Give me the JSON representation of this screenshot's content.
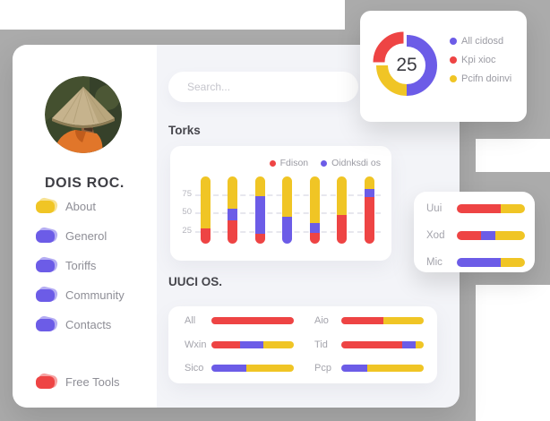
{
  "colors": {
    "red": "#ee4444",
    "purple": "#6c5ce7",
    "yellow": "#f0c525",
    "backdrop_gray": "#ababab"
  },
  "sidebar": {
    "name": "DOIS ROC.",
    "items": [
      {
        "label": "About",
        "color": "yellow"
      },
      {
        "label": "Generol",
        "color": "purple"
      },
      {
        "label": "Toriffs",
        "color": "purple"
      },
      {
        "label": "Community",
        "color": "purple"
      },
      {
        "label": "Contacts",
        "color": "purple"
      }
    ],
    "footer_item": {
      "label": "Free Tools",
      "color": "red"
    }
  },
  "search": {
    "placeholder": "Search..."
  },
  "donut_card": {
    "value": "25",
    "segments": [
      {
        "color": "purple",
        "fraction": 0.5
      },
      {
        "color": "red",
        "fraction": 0.25,
        "exploded": true
      },
      {
        "color": "yellow",
        "fraction": 0.25
      }
    ],
    "legend": [
      {
        "label": "All cidosd",
        "color": "purple"
      },
      {
        "label": "Kpi xioc",
        "color": "red"
      },
      {
        "label": "Pcifn doinvi",
        "color": "yellow"
      }
    ]
  },
  "torks_chart": {
    "title": "Torks",
    "type": "stacked-bar",
    "legend": [
      {
        "label": "Fdison",
        "color": "red"
      },
      {
        "label": "Oidnksdi os",
        "color": "purple"
      }
    ],
    "y_ticks": [
      {
        "label": "75",
        "pos": 0.267
      },
      {
        "label": "50",
        "pos": 0.533
      },
      {
        "label": "25",
        "pos": 0.813
      }
    ],
    "bars": [
      {
        "segments": [
          {
            "color": "red",
            "frac": 0.23
          },
          {
            "color": "yellow",
            "frac": 0.77
          }
        ]
      },
      {
        "segments": [
          {
            "color": "red",
            "frac": 0.35
          },
          {
            "color": "purple",
            "frac": 0.17
          },
          {
            "color": "yellow",
            "frac": 0.48
          }
        ]
      },
      {
        "segments": [
          {
            "color": "red",
            "frac": 0.15
          },
          {
            "color": "purple",
            "frac": 0.56
          },
          {
            "color": "yellow",
            "frac": 0.29
          }
        ]
      },
      {
        "segments": [
          {
            "color": "purple",
            "frac": 0.4
          },
          {
            "color": "yellow",
            "frac": 0.6
          }
        ]
      },
      {
        "segments": [
          {
            "color": "red",
            "frac": 0.16
          },
          {
            "color": "purple",
            "frac": 0.15
          },
          {
            "color": "yellow",
            "frac": 0.69
          }
        ]
      },
      {
        "segments": [
          {
            "color": "red",
            "frac": 0.43
          },
          {
            "color": "yellow",
            "frac": 0.57
          }
        ]
      },
      {
        "segments": [
          {
            "color": "red",
            "frac": 0.69
          },
          {
            "color": "purple",
            "frac": 0.13
          },
          {
            "color": "yellow",
            "frac": 0.18
          }
        ]
      }
    ]
  },
  "uuci_chart": {
    "title": "UUCI OS.",
    "type": "horizontal-stacked-bar",
    "columns": [
      {
        "rows": [
          {
            "label": "All",
            "segments": [
              {
                "color": "red",
                "frac": 1.0
              }
            ]
          },
          {
            "label": "Wxin",
            "segments": [
              {
                "color": "red",
                "frac": 0.35
              },
              {
                "color": "purple",
                "frac": 0.28
              },
              {
                "color": "yellow",
                "frac": 0.37
              }
            ]
          },
          {
            "label": "Sico",
            "segments": [
              {
                "color": "purple",
                "frac": 0.42
              },
              {
                "color": "yellow",
                "frac": 0.58
              }
            ]
          }
        ]
      },
      {
        "rows": [
          {
            "label": "Aio",
            "segments": [
              {
                "color": "red",
                "frac": 0.51
              },
              {
                "color": "yellow",
                "frac": 0.49
              }
            ]
          },
          {
            "label": "Tid",
            "segments": [
              {
                "color": "red",
                "frac": 0.74
              },
              {
                "color": "purple",
                "frac": 0.16
              },
              {
                "color": "yellow",
                "frac": 0.1
              }
            ]
          },
          {
            "label": "Pcp",
            "segments": [
              {
                "color": "purple",
                "frac": 0.31
              },
              {
                "color": "yellow",
                "frac": 0.69
              }
            ]
          }
        ]
      }
    ]
  },
  "side_panel": {
    "rows": [
      {
        "label": "Uui",
        "segments": [
          {
            "color": "red",
            "frac": 0.64
          },
          {
            "color": "yellow",
            "frac": 0.36
          }
        ]
      },
      {
        "label": "Xod",
        "segments": [
          {
            "color": "red",
            "frac": 0.36
          },
          {
            "color": "purple",
            "frac": 0.2
          },
          {
            "color": "yellow",
            "frac": 0.44
          }
        ]
      },
      {
        "label": "Mic",
        "segments": [
          {
            "color": "purple",
            "frac": 0.64
          },
          {
            "color": "yellow",
            "frac": 0.36
          }
        ]
      }
    ]
  }
}
